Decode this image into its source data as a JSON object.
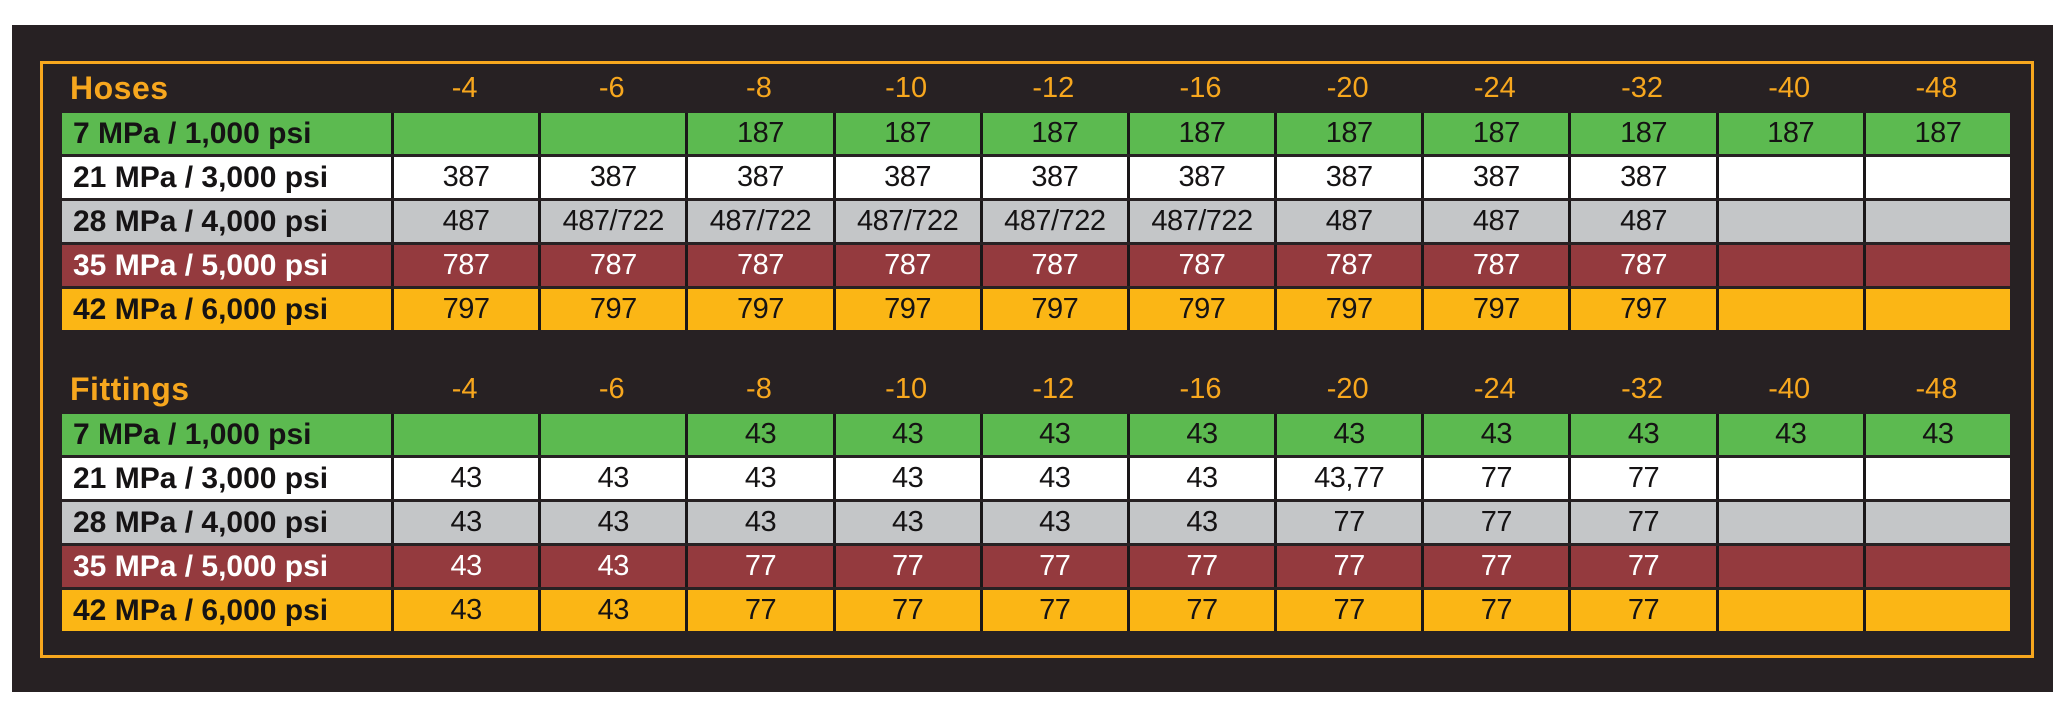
{
  "page": {
    "background": "#FFFFFF"
  },
  "panel": {
    "background": "#272123",
    "frame_color": "#F7A71E"
  },
  "colors": {
    "green": "#5CBA50",
    "white": "#FFFFFF",
    "gray": "#C4C6C8",
    "red": "#943A3E",
    "orange": "#FBB615",
    "header_text": "#F7A71E",
    "cell_border": "#1A1718",
    "text_dark": "#151314",
    "text_light": "#FFFFFF"
  },
  "columns": [
    "-4",
    "-6",
    "-8",
    "-10",
    "-12",
    "-16",
    "-20",
    "-24",
    "-32",
    "-40",
    "-48"
  ],
  "sections": [
    {
      "title": "Hoses",
      "rows": [
        {
          "label": "7 MPa / 1,000 psi",
          "color": "green",
          "text": "dark",
          "values": [
            "",
            "",
            "187",
            "187",
            "187",
            "187",
            "187",
            "187",
            "187",
            "187",
            "187"
          ]
        },
        {
          "label": "21 MPa / 3,000 psi",
          "color": "white",
          "text": "dark",
          "values": [
            "387",
            "387",
            "387",
            "387",
            "387",
            "387",
            "387",
            "387",
            "387",
            "",
            ""
          ]
        },
        {
          "label": "28 MPa / 4,000 psi",
          "color": "gray",
          "text": "dark",
          "values": [
            "487",
            "487/722",
            "487/722",
            "487/722",
            "487/722",
            "487/722",
            "487",
            "487",
            "487",
            "",
            ""
          ]
        },
        {
          "label": "35 MPa / 5,000 psi",
          "color": "red",
          "text": "light",
          "values": [
            "787",
            "787",
            "787",
            "787",
            "787",
            "787",
            "787",
            "787",
            "787",
            "",
            ""
          ]
        },
        {
          "label": "42 MPa / 6,000 psi",
          "color": "orange",
          "text": "dark",
          "values": [
            "797",
            "797",
            "797",
            "797",
            "797",
            "797",
            "797",
            "797",
            "797",
            "",
            ""
          ]
        }
      ]
    },
    {
      "title": "Fittings",
      "rows": [
        {
          "label": "7 MPa / 1,000 psi",
          "color": "green",
          "text": "dark",
          "values": [
            "",
            "",
            "43",
            "43",
            "43",
            "43",
            "43",
            "43",
            "43",
            "43",
            "43"
          ]
        },
        {
          "label": "21 MPa / 3,000 psi",
          "color": "white",
          "text": "dark",
          "values": [
            "43",
            "43",
            "43",
            "43",
            "43",
            "43",
            "43,77",
            "77",
            "77",
            "",
            ""
          ]
        },
        {
          "label": "28 MPa / 4,000 psi",
          "color": "gray",
          "text": "dark",
          "values": [
            "43",
            "43",
            "43",
            "43",
            "43",
            "43",
            "77",
            "77",
            "77",
            "",
            ""
          ]
        },
        {
          "label": "35 MPa / 5,000 psi",
          "color": "red",
          "text": "light",
          "values": [
            "43",
            "43",
            "77",
            "77",
            "77",
            "77",
            "77",
            "77",
            "77",
            "",
            ""
          ]
        },
        {
          "label": "42 MPa / 6,000 psi",
          "color": "orange",
          "text": "dark",
          "values": [
            "43",
            "43",
            "77",
            "77",
            "77",
            "77",
            "77",
            "77",
            "77",
            "",
            ""
          ]
        }
      ]
    }
  ],
  "chart_data": [
    {
      "type": "table",
      "title": "Hoses",
      "columns": [
        "-4",
        "-6",
        "-8",
        "-10",
        "-12",
        "-16",
        "-20",
        "-24",
        "-32",
        "-40",
        "-48"
      ],
      "rows": [
        {
          "label": "7 MPa / 1,000 psi",
          "values": [
            "",
            "",
            "187",
            "187",
            "187",
            "187",
            "187",
            "187",
            "187",
            "187",
            "187"
          ]
        },
        {
          "label": "21 MPa / 3,000 psi",
          "values": [
            "387",
            "387",
            "387",
            "387",
            "387",
            "387",
            "387",
            "387",
            "387",
            "",
            ""
          ]
        },
        {
          "label": "28 MPa / 4,000 psi",
          "values": [
            "487",
            "487/722",
            "487/722",
            "487/722",
            "487/722",
            "487/722",
            "487",
            "487",
            "487",
            "",
            ""
          ]
        },
        {
          "label": "35 MPa / 5,000 psi",
          "values": [
            "787",
            "787",
            "787",
            "787",
            "787",
            "787",
            "787",
            "787",
            "787",
            "",
            ""
          ]
        },
        {
          "label": "42 MPa / 6,000 psi",
          "values": [
            "797",
            "797",
            "797",
            "797",
            "797",
            "797",
            "797",
            "797",
            "797",
            "",
            ""
          ]
        }
      ]
    },
    {
      "type": "table",
      "title": "Fittings",
      "columns": [
        "-4",
        "-6",
        "-8",
        "-10",
        "-12",
        "-16",
        "-20",
        "-24",
        "-32",
        "-40",
        "-48"
      ],
      "rows": [
        {
          "label": "7 MPa / 1,000 psi",
          "values": [
            "",
            "",
            "43",
            "43",
            "43",
            "43",
            "43",
            "43",
            "43",
            "43",
            "43"
          ]
        },
        {
          "label": "21 MPa / 3,000 psi",
          "values": [
            "43",
            "43",
            "43",
            "43",
            "43",
            "43",
            "43,77",
            "77",
            "77",
            "",
            ""
          ]
        },
        {
          "label": "28 MPa / 4,000 psi",
          "values": [
            "43",
            "43",
            "43",
            "43",
            "43",
            "43",
            "77",
            "77",
            "77",
            "",
            ""
          ]
        },
        {
          "label": "35 MPa / 5,000 psi",
          "values": [
            "43",
            "43",
            "77",
            "77",
            "77",
            "77",
            "77",
            "77",
            "77",
            "",
            ""
          ]
        },
        {
          "label": "42 MPa / 6,000 psi",
          "values": [
            "43",
            "43",
            "77",
            "77",
            "77",
            "77",
            "77",
            "77",
            "77",
            "",
            ""
          ]
        }
      ]
    }
  ]
}
